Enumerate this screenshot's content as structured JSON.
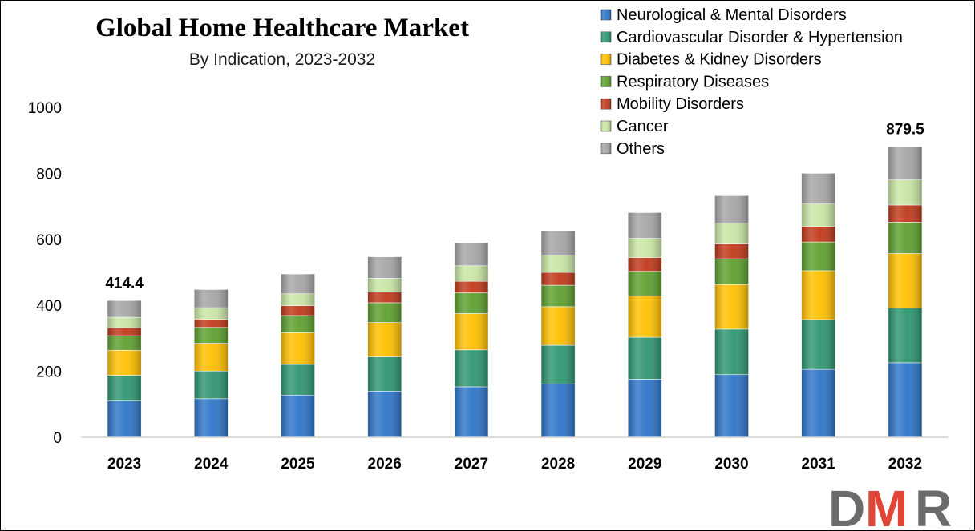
{
  "chart_data": {
    "type": "bar",
    "stacked": true,
    "title": "Global Home Healthcare Market",
    "subtitle": "By Indication, 2023-2032",
    "categories": [
      "2023",
      "2024",
      "2025",
      "2026",
      "2027",
      "2028",
      "2029",
      "2030",
      "2031",
      "2032"
    ],
    "ylim": [
      0,
      1000
    ],
    "yticks": [
      0,
      200,
      400,
      600,
      800,
      1000
    ],
    "grid": false,
    "legend_position": "top-right",
    "series": [
      {
        "name": "Neurological & Mental Disorders",
        "color": "#2e75c8",
        "values": [
          110,
          117,
          128,
          140,
          153,
          162,
          176,
          190,
          206,
          226
        ]
      },
      {
        "name": "Cardiovascular Disorder & Hypertension",
        "color": "#2f9670",
        "values": [
          78,
          84,
          93,
          104,
          112,
          117,
          127,
          138,
          151,
          166
        ]
      },
      {
        "name": "Diabetes & Kidney Disorders",
        "color": "#ffc000",
        "values": [
          76,
          84,
          96,
          104,
          110,
          117,
          126,
          135,
          148,
          165
        ]
      },
      {
        "name": "Respiratory Diseases",
        "color": "#5ea02f",
        "values": [
          44,
          48,
          52,
          60,
          63,
          65,
          74,
          78,
          87,
          95
        ]
      },
      {
        "name": "Mobility Disorders",
        "color": "#c0391b",
        "values": [
          24,
          25,
          30,
          32,
          35,
          39,
          42,
          45,
          47,
          52
        ]
      },
      {
        "name": "Cancer",
        "color": "#c9e6a4",
        "values": [
          32,
          35,
          36,
          42,
          47,
          52,
          58,
          63,
          68,
          76
        ]
      },
      {
        "name": "Others",
        "color": "#a6a6a6",
        "values": [
          50.4,
          55,
          60,
          65,
          70,
          74,
          78,
          83,
          93,
          99.5
        ]
      }
    ],
    "data_labels": [
      {
        "category": "2023",
        "text": "414.4"
      },
      {
        "category": "2032",
        "text": "879.5"
      }
    ]
  },
  "logo": {
    "text": "DMR",
    "colors": {
      "D": "#6b6b6b",
      "M": "#e04535",
      "R": "#6b6b6b"
    }
  }
}
